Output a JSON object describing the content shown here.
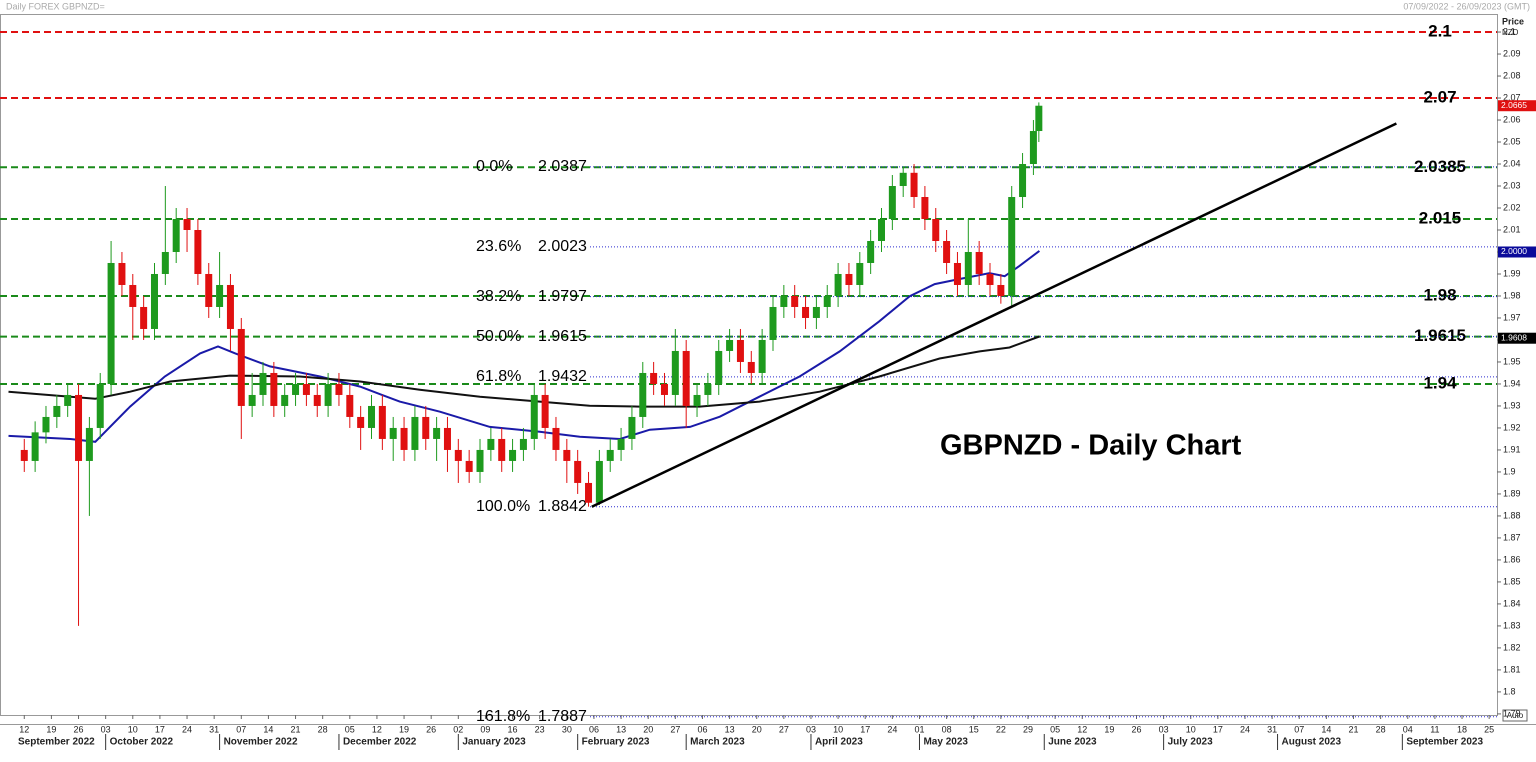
{
  "chart_data": {
    "type": "candlestick",
    "title": "GBPNZD - Daily Chart",
    "header_left": "Daily FOREX GBPNZD=",
    "header_right": "07/09/2022 - 26/09/2023 (GMT)",
    "axis_label": "Price",
    "currency": "NZD",
    "auto_label": "Auto",
    "xlim": [
      -3,
      272
    ],
    "ylim": [
      1.7895,
      2.1082
    ],
    "yticks": [
      1.79,
      1.8,
      1.81,
      1.82,
      1.83,
      1.84,
      1.85,
      1.86,
      1.87,
      1.88,
      1.89,
      1.9,
      1.91,
      1.92,
      1.93,
      1.94,
      1.95,
      1.96,
      1.97,
      1.98,
      1.99,
      2,
      2.01,
      2.02,
      2.03,
      2.04,
      2.05,
      2.06,
      2.07,
      2.08,
      2.09,
      2.1
    ],
    "xticks": [
      {
        "value": 0,
        "label": "12"
      },
      {
        "value": 5,
        "label": "19"
      },
      {
        "value": 10,
        "label": "26"
      },
      {
        "value": 15,
        "label": "03"
      },
      {
        "value": 20,
        "label": "10"
      },
      {
        "value": 25,
        "label": "17"
      },
      {
        "value": 30,
        "label": "24"
      },
      {
        "value": 35,
        "label": "31"
      },
      {
        "value": 40,
        "label": "07"
      },
      {
        "value": 45,
        "label": "14"
      },
      {
        "value": 50,
        "label": "21"
      },
      {
        "value": 55,
        "label": "28"
      },
      {
        "value": 60,
        "label": "05"
      },
      {
        "value": 65,
        "label": "12"
      },
      {
        "value": 70,
        "label": "19"
      },
      {
        "value": 75,
        "label": "26"
      },
      {
        "value": 80,
        "label": "02"
      },
      {
        "value": 85,
        "label": "09"
      },
      {
        "value": 90,
        "label": "16"
      },
      {
        "value": 95,
        "label": "23"
      },
      {
        "value": 100,
        "label": "30"
      },
      {
        "value": 105,
        "label": "06"
      },
      {
        "value": 110,
        "label": "13"
      },
      {
        "value": 115,
        "label": "20"
      },
      {
        "value": 120,
        "label": "27"
      },
      {
        "value": 125,
        "label": "06"
      },
      {
        "value": 130,
        "label": "13"
      },
      {
        "value": 135,
        "label": "20"
      },
      {
        "value": 140,
        "label": "27"
      },
      {
        "value": 145,
        "label": "03"
      },
      {
        "value": 150,
        "label": "10"
      },
      {
        "value": 155,
        "label": "17"
      },
      {
        "value": 160,
        "label": "24"
      },
      {
        "value": 165,
        "label": "01"
      },
      {
        "value": 170,
        "label": "08"
      },
      {
        "value": 175,
        "label": "15"
      },
      {
        "value": 180,
        "label": "22"
      },
      {
        "value": 185,
        "label": "29"
      },
      {
        "value": 190,
        "label": "05"
      },
      {
        "value": 195,
        "label": "12"
      },
      {
        "value": 200,
        "label": "19"
      },
      {
        "value": 205,
        "label": "26"
      },
      {
        "value": 210,
        "label": "03"
      },
      {
        "value": 215,
        "label": "10"
      },
      {
        "value": 220,
        "label": "17"
      },
      {
        "value": 225,
        "label": "24"
      },
      {
        "value": 230,
        "label": "31"
      },
      {
        "value": 235,
        "label": "07"
      },
      {
        "value": 240,
        "label": "14"
      },
      {
        "value": 245,
        "label": "21"
      },
      {
        "value": 250,
        "label": "28"
      },
      {
        "value": 255,
        "label": "04"
      },
      {
        "value": 260,
        "label": "11"
      },
      {
        "value": 265,
        "label": "18"
      },
      {
        "value": 270,
        "label": "25"
      }
    ],
    "months": [
      {
        "value": -3,
        "label": "September 2022"
      },
      {
        "value": 15,
        "label": "October 2022"
      },
      {
        "value": 36,
        "label": "November 2022"
      },
      {
        "value": 58,
        "label": "December 2022"
      },
      {
        "value": 80,
        "label": "January 2023"
      },
      {
        "value": 102,
        "label": "February 2023"
      },
      {
        "value": 122,
        "label": "March 2023"
      },
      {
        "value": 145,
        "label": "April 2023"
      },
      {
        "value": 165,
        "label": "May 2023"
      },
      {
        "value": 188,
        "label": "June 2023"
      },
      {
        "value": 210,
        "label": "July 2023"
      },
      {
        "value": 231,
        "label": "August 2023"
      },
      {
        "value": 254,
        "label": "September 2023"
      }
    ],
    "up_color": "#1e9a1e",
    "down_color": "#e01010",
    "candles": {
      "x": [
        0,
        2,
        4,
        6,
        8,
        10,
        12,
        14,
        16,
        18,
        20,
        22,
        24,
        26,
        28,
        30,
        32,
        34,
        36,
        38,
        40,
        42,
        44,
        46,
        48,
        50,
        52,
        54,
        56,
        58,
        60,
        62,
        64,
        66,
        68,
        70,
        72,
        74,
        76,
        78,
        80,
        82,
        84,
        86,
        88,
        90,
        92,
        94,
        96,
        98,
        100,
        102,
        104,
        106,
        108,
        110,
        112,
        114,
        116,
        118,
        120,
        122,
        124,
        126,
        128,
        130,
        132,
        134,
        136,
        138,
        140,
        142,
        144,
        146,
        148,
        150,
        152,
        154,
        156,
        158,
        160,
        162,
        164,
        166,
        168,
        170,
        172,
        174,
        176,
        178,
        180,
        182,
        184,
        186,
        187
      ],
      "open": [
        1.91,
        1.905,
        1.918,
        1.925,
        1.93,
        1.935,
        1.905,
        1.92,
        1.94,
        1.995,
        1.985,
        1.975,
        1.965,
        1.99,
        2.0,
        2.015,
        2.01,
        1.99,
        1.975,
        1.985,
        1.965,
        1.93,
        1.935,
        1.945,
        1.93,
        1.935,
        1.94,
        1.935,
        1.93,
        1.94,
        1.935,
        1.925,
        1.92,
        1.93,
        1.915,
        1.92,
        1.91,
        1.925,
        1.915,
        1.92,
        1.91,
        1.905,
        1.9,
        1.91,
        1.915,
        1.905,
        1.91,
        1.915,
        1.935,
        1.92,
        1.91,
        1.905,
        1.895,
        1.886,
        1.905,
        1.91,
        1.915,
        1.925,
        1.945,
        1.94,
        1.935,
        1.955,
        1.93,
        1.935,
        1.94,
        1.955,
        1.96,
        1.95,
        1.945,
        1.96,
        1.975,
        1.98,
        1.975,
        1.97,
        1.975,
        1.98,
        1.99,
        1.985,
        1.995,
        2.005,
        2.015,
        2.03,
        2.036,
        2.025,
        2.015,
        2.005,
        1.995,
        1.985,
        2.0,
        1.99,
        1.985,
        1.98,
        2.025,
        2.04,
        2.055
      ],
      "high": [
        1.915,
        1.923,
        1.93,
        1.935,
        1.94,
        1.94,
        1.925,
        1.945,
        2.005,
        2.0,
        1.99,
        1.98,
        1.995,
        2.03,
        2.02,
        2.02,
        2.015,
        1.995,
        2.0,
        1.99,
        1.97,
        1.945,
        1.95,
        1.95,
        1.94,
        1.945,
        1.945,
        1.94,
        1.945,
        1.945,
        1.94,
        1.93,
        1.935,
        1.935,
        1.925,
        1.925,
        1.93,
        1.93,
        1.925,
        1.925,
        1.915,
        1.91,
        1.915,
        1.92,
        1.92,
        1.915,
        1.92,
        1.94,
        1.94,
        1.925,
        1.915,
        1.91,
        1.9,
        1.91,
        1.915,
        1.92,
        1.93,
        1.95,
        1.95,
        1.945,
        1.965,
        1.96,
        1.94,
        1.945,
        1.96,
        1.965,
        1.965,
        1.955,
        1.965,
        1.98,
        1.985,
        1.985,
        1.98,
        1.98,
        1.985,
        1.995,
        1.995,
        2.0,
        2.01,
        2.02,
        2.035,
        2.0387,
        2.04,
        2.03,
        2.02,
        2.01,
        2.0,
        2.015,
        2.005,
        1.995,
        1.99,
        2.03,
        2.045,
        2.06,
        2.068
      ],
      "low": [
        1.9,
        1.9,
        1.913,
        1.92,
        1.925,
        1.83,
        1.88,
        1.915,
        1.935,
        1.98,
        1.96,
        1.96,
        1.96,
        1.985,
        1.995,
        2.0,
        1.985,
        1.97,
        1.97,
        1.955,
        1.915,
        1.925,
        1.93,
        1.925,
        1.925,
        1.93,
        1.93,
        1.925,
        1.925,
        1.93,
        1.92,
        1.91,
        1.915,
        1.91,
        1.905,
        1.905,
        1.905,
        1.91,
        1.905,
        1.9,
        1.895,
        1.895,
        1.895,
        1.905,
        1.9,
        1.9,
        1.905,
        1.91,
        1.915,
        1.905,
        1.895,
        1.89,
        1.8842,
        1.885,
        1.9,
        1.905,
        1.91,
        1.92,
        1.935,
        1.93,
        1.93,
        1.92,
        1.925,
        1.93,
        1.935,
        1.95,
        1.945,
        1.94,
        1.94,
        1.955,
        1.97,
        1.97,
        1.965,
        1.965,
        1.97,
        1.975,
        1.98,
        1.98,
        1.99,
        2.0,
        2.01,
        2.025,
        2.02,
        2.01,
        2.0,
        1.99,
        1.98,
        1.98,
        1.985,
        1.98,
        1.9765,
        1.975,
        2.02,
        2.035,
        2.05
      ],
      "close": [
        1.905,
        1.918,
        1.925,
        1.93,
        1.935,
        1.905,
        1.92,
        1.94,
        1.995,
        1.985,
        1.975,
        1.965,
        1.99,
        2.0,
        2.015,
        2.01,
        1.99,
        1.975,
        1.985,
        1.965,
        1.93,
        1.935,
        1.945,
        1.93,
        1.935,
        1.94,
        1.935,
        1.93,
        1.94,
        1.935,
        1.925,
        1.92,
        1.93,
        1.915,
        1.92,
        1.91,
        1.925,
        1.915,
        1.92,
        1.91,
        1.905,
        1.9,
        1.91,
        1.915,
        1.905,
        1.91,
        1.915,
        1.935,
        1.92,
        1.91,
        1.905,
        1.895,
        1.886,
        1.905,
        1.91,
        1.915,
        1.925,
        1.945,
        1.94,
        1.935,
        1.955,
        1.93,
        1.935,
        1.94,
        1.955,
        1.96,
        1.95,
        1.945,
        1.96,
        1.975,
        1.98,
        1.975,
        1.97,
        1.975,
        1.98,
        1.99,
        1.985,
        1.995,
        2.005,
        2.015,
        2.03,
        2.036,
        2.025,
        2.015,
        2.005,
        1.995,
        1.985,
        2.0,
        1.99,
        1.985,
        1.98,
        2.025,
        2.04,
        2.055,
        2.0665
      ]
    },
    "moving_averages": [
      {
        "color": "#1a1aa8",
        "x": [
          -2.9,
          8.5,
          13.1,
          19.5,
          25.9,
          32.4,
          35.7,
          38.9,
          45.3,
          54.5,
          61.9,
          69.2,
          76.6,
          85.8,
          95.0,
          102.4,
          109.8,
          115.3,
          122.7,
          128.2,
          135.5,
          142.9,
          150.3,
          157.6,
          163.2,
          167.8,
          172.4,
          177.9,
          180.7,
          183.4,
          187.1
        ],
        "values": [
          1.9164,
          1.915,
          1.9137,
          1.9297,
          1.9434,
          1.9539,
          1.9571,
          1.9539,
          1.948,
          1.9434,
          1.9388,
          1.932,
          1.9274,
          1.9205,
          1.9183,
          1.916,
          1.915,
          1.9192,
          1.9205,
          1.9251,
          1.9342,
          1.9434,
          1.9548,
          1.9685,
          1.9799,
          1.9854,
          1.9877,
          1.9904,
          1.989,
          1.9936,
          2.0005
        ]
      },
      {
        "color": "#111111",
        "x": [
          -2.9,
          13.1,
          19.5,
          26.9,
          37.9,
          50.8,
          61.9,
          72.9,
          84.0,
          95.0,
          104.2,
          113.4,
          124.5,
          135.5,
          146.6,
          157.6,
          168.7,
          176.1,
          181.6,
          187.1
        ],
        "values": [
          1.9365,
          1.9333,
          1.9365,
          1.9411,
          1.9438,
          1.9434,
          1.9411,
          1.9374,
          1.9342,
          1.932,
          1.9301,
          1.9297,
          1.9297,
          1.932,
          1.9365,
          1.9434,
          1.9516,
          1.9548,
          1.9566,
          1.9616
        ]
      }
    ],
    "trendline": {
      "color": "#000000",
      "x": [
        104.6,
        252.9
      ],
      "values": [
        1.8842,
        2.0584
      ]
    },
    "levels": [
      {
        "value": 2.1,
        "color": "#e01010"
      },
      {
        "value": 2.07,
        "color": "#e01010"
      },
      {
        "value": 2.0385,
        "color": "#1a8a1a"
      },
      {
        "value": 2.015,
        "color": "#1a8a1a"
      },
      {
        "value": 1.98,
        "color": "#1a8a1a"
      },
      {
        "value": 1.9615,
        "color": "#1a8a1a"
      },
      {
        "value": 1.94,
        "color": "#1a8a1a"
      }
    ],
    "fib_color": "#2a2ad0",
    "fib": [
      {
        "level": "0.0%",
        "value": 2.0387
      },
      {
        "level": "23.6%",
        "value": 2.0023
      },
      {
        "level": "38.2%",
        "value": 1.9797
      },
      {
        "level": "50.0%",
        "value": 1.9615
      },
      {
        "level": "61.8%",
        "value": 1.9432
      },
      {
        "level": "100.0%",
        "value": 1.8842
      },
      {
        "level": "161.8%",
        "value": 1.7887
      }
    ],
    "price_tags": [
      {
        "value": 2.0665,
        "color": "#e01010"
      },
      {
        "value": 2.0,
        "label": "2.0000",
        "color": "#0a0a9a"
      },
      {
        "value": 1.9608,
        "color": "#000000"
      }
    ]
  }
}
